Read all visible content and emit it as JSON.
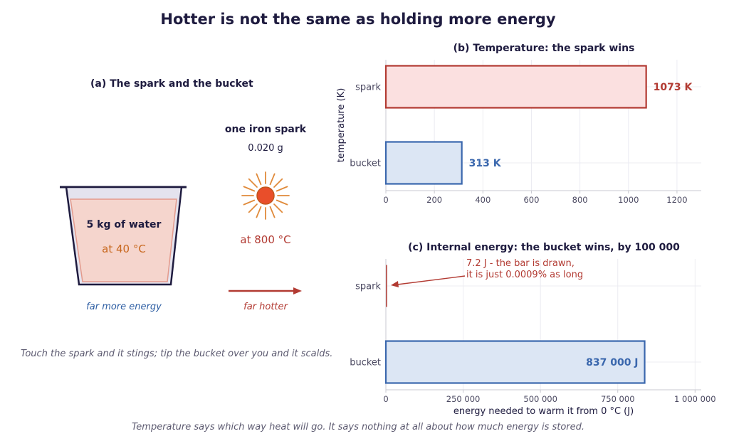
{
  "title": "Hotter is not the same as holding more energy",
  "panel_a": {
    "title": "(a) The spark and the bucket",
    "bucket_label": "5 kg of water",
    "bucket_temp": "at 40 °C",
    "bucket_caption": "far more energy",
    "spark_title": "one iron spark",
    "spark_mass": "0.020 g",
    "spark_temp": "at 800 °C",
    "spark_caption": "far hotter",
    "note": "Touch the spark and it stings; tip the bucket over you and it scalds."
  },
  "footer": "Temperature says which way heat will go. It says nothing at all about how much energy is stored.",
  "colors": {
    "spark": "#b23a32",
    "spark_fill": "#fbe0e0",
    "bucket": "#3a67ad",
    "bucket_fill": "#dce6f4",
    "water": "#f5d5cd",
    "sun": "#e94e2a",
    "ray": "#e08a3a"
  },
  "chart_data": [
    {
      "type": "bar",
      "orientation": "horizontal",
      "title": "(b) Temperature: the spark wins",
      "ylabel": "temperature (K)",
      "categories": [
        "spark",
        "bucket"
      ],
      "values": [
        1073,
        313
      ],
      "value_labels": [
        "1073 K",
        "313 K"
      ],
      "xlim": [
        0,
        1300
      ],
      "xticks": [
        0,
        200,
        400,
        600,
        800,
        1000,
        1200
      ],
      "xtick_labels": [
        "0",
        "200",
        "400",
        "600",
        "800",
        "1000",
        "1200"
      ],
      "grid": true
    },
    {
      "type": "bar",
      "orientation": "horizontal",
      "title": "(c) Internal energy: the bucket wins, by 100 000",
      "xlabel": "energy needed to warm it from 0 °C  (J)",
      "categories": [
        "spark",
        "bucket"
      ],
      "values": [
        7.2,
        837000
      ],
      "value_labels": [
        "",
        "837 000 J"
      ],
      "annotation": [
        "7.2 J - the bar is drawn,",
        "it is just 0.0009% as long"
      ],
      "xlim": [
        0,
        1020000
      ],
      "xticks": [
        0,
        250000,
        500000,
        750000,
        1000000
      ],
      "xtick_labels": [
        "0",
        "250 000",
        "500 000",
        "750 000",
        "1 000 000"
      ],
      "grid": true
    }
  ]
}
